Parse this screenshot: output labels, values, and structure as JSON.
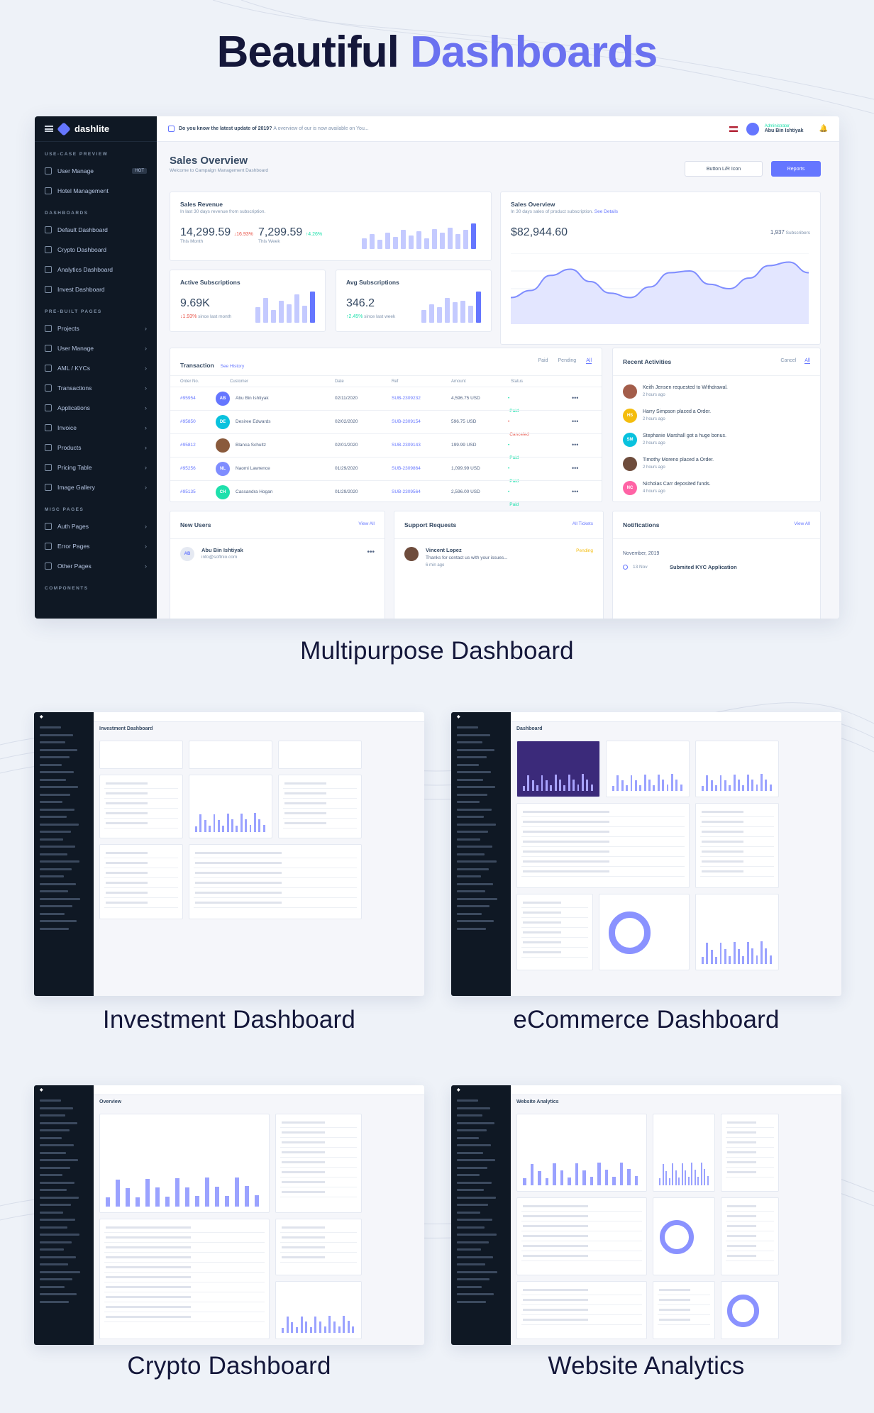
{
  "hero": {
    "title_a": "Beautiful",
    "title_b": "Dashboards"
  },
  "captions": {
    "main": "Multipurpose Dashboard",
    "investment": "Investment Dashboard",
    "ecommerce": "eCommerce Dashboard",
    "crypto": "Crypto Dashboard",
    "analytics": "Website Analytics"
  },
  "main": {
    "logo": "dashlite",
    "sidebar": {
      "use_case": "USE-CASE PREVIEW",
      "use_items": [
        {
          "label": "User Manage",
          "badge": "HOT"
        },
        {
          "label": "Hotel Management"
        }
      ],
      "dashboards": "DASHBOARDS",
      "dash_items": [
        "Default Dashboard",
        "Crypto Dashboard",
        "Analytics Dashboard",
        "Invest Dashboard"
      ],
      "prebuilt": "PRE-BUILT PAGES",
      "pre_items": [
        "Projects",
        "User Manage",
        "AML / KYCs",
        "Transactions",
        "Applications",
        "Invoice",
        "Products",
        "Pricing Table",
        "Image Gallery"
      ],
      "misc": "MISC PAGES",
      "misc_items": [
        "Auth Pages",
        "Error Pages",
        "Other Pages"
      ],
      "components": "COMPONENTS"
    },
    "topbar": {
      "notice_hl": "Do you know the latest update of 2019?",
      "notice_rest": "A overview of our is now available on You...",
      "user_role": "Administrator",
      "user_name": "Abu Bin Ishtiyak"
    },
    "page": {
      "title": "Sales Overview",
      "subtitle": "Welcome to Campaign Management Dashboard",
      "btn_outline": "Button L/R Icon",
      "btn_primary": "Reports"
    },
    "sales_revenue": {
      "title": "Sales Revenue",
      "sub": "In last 30 days revenue from subscription.",
      "v1": "14,299.59",
      "d1": "16.93%",
      "l1": "This Month",
      "v2": "7,299.59",
      "d2": "4.26%",
      "l2": "This Week",
      "bars": [
        0.4,
        0.55,
        0.35,
        0.6,
        0.45,
        0.7,
        0.5,
        0.65,
        0.4,
        0.75,
        0.6,
        0.8,
        0.55,
        0.7,
        0.95
      ]
    },
    "sales_overview": {
      "title": "Sales Overview",
      "sub": "In 30 days sales of product subscription.",
      "sub_link": "See Details",
      "value": "$82,944.60",
      "count": "1,937",
      "count_label": "Subscribers",
      "line": [
        30,
        38,
        55,
        62,
        48,
        35,
        30,
        42,
        58,
        60,
        45,
        40,
        52,
        66,
        70,
        58
      ]
    },
    "active_sub": {
      "title": "Active Subscriptions",
      "value": "9.69K",
      "delta": "1.93%",
      "note": "since last month",
      "bars": [
        0.5,
        0.8,
        0.4,
        0.7,
        0.6,
        0.9,
        0.55,
        1.0
      ]
    },
    "avg_sub": {
      "title": "Avg Subscriptions",
      "value": "346.2",
      "delta": "2.45%",
      "note": "since last week",
      "bars": [
        0.4,
        0.6,
        0.5,
        0.8,
        0.65,
        0.7,
        0.55,
        1.0
      ]
    },
    "transaction": {
      "title": "Transaction",
      "link": "See History",
      "tabs": [
        "Paid",
        "Pending",
        "All"
      ],
      "cols": [
        "Order No.",
        "Customer",
        "Date",
        "Ref",
        "Amount",
        "Status"
      ],
      "rows": [
        {
          "no": "#95954",
          "initials": "AB",
          "color": "#6576ff",
          "name": "Abu Bin Ishtiyak",
          "date": "02/11/2020",
          "ref": "SUB-2309232",
          "amount": "4,596.75 USD",
          "status": "Paid"
        },
        {
          "no": "#95850",
          "initials": "DE",
          "color": "#09c2de",
          "name": "Desiree Edwards",
          "date": "02/02/2020",
          "ref": "SUB-2309154",
          "amount": "596.75 USD",
          "status": "Canceled"
        },
        {
          "no": "#95812",
          "initials": "",
          "color": "#8a5a3c",
          "name": "Blanca Schultz",
          "date": "02/01/2020",
          "ref": "SUB-2309143",
          "amount": "199.99 USD",
          "status": "Paid"
        },
        {
          "no": "#95256",
          "initials": "NL",
          "color": "#7f8dff",
          "name": "Naomi Lawrence",
          "date": "01/29/2020",
          "ref": "SUB-2309864",
          "amount": "1,099.99 USD",
          "status": "Paid"
        },
        {
          "no": "#95135",
          "initials": "CH",
          "color": "#1ee0ac",
          "name": "Cassandra Hogan",
          "date": "01/29/2020",
          "ref": "SUB-2309564",
          "amount": "2,596.00 USD",
          "status": "Paid"
        }
      ]
    },
    "activities": {
      "title": "Recent Activities",
      "tabs": [
        "Cancel",
        "All"
      ],
      "items": [
        {
          "initials": "",
          "color": "#a35d4a",
          "text": "Keith Jensen requested to Withdrawal.",
          "time": "2 hours ago"
        },
        {
          "initials": "HS",
          "color": "#f4bd0e",
          "text": "Harry Simpson placed a Order.",
          "time": "2 hours ago"
        },
        {
          "initials": "SM",
          "color": "#09c2de",
          "text": "Stephanie Marshall got a huge bonus.",
          "time": "2 hours ago"
        },
        {
          "initials": "",
          "color": "#6e4c3c",
          "text": "Timothy Moreno placed a Order.",
          "time": "2 hours ago"
        },
        {
          "initials": "NC",
          "color": "#ff63a5",
          "text": "Nicholas Carr deposited funds.",
          "time": "4 hours ago"
        }
      ]
    },
    "new_users": {
      "title": "New Users",
      "link": "View All",
      "name": "Abu Bin Ishtiyak",
      "email": "info@softnio.com",
      "initials": "AB"
    },
    "support": {
      "title": "Support Requests",
      "link": "All Tickets",
      "name": "Vincent Lopez",
      "msg": "Thanks for contact us with your issues...",
      "time": "6 min ago",
      "status": "Pending"
    },
    "notifications": {
      "title": "Notifications",
      "link": "View All",
      "month": "November, 2019",
      "date": "13 Nov",
      "event": "Submited KYC Application"
    }
  },
  "thumbs": {
    "investment": {
      "title": "Investment Dashboard"
    },
    "ecommerce": {
      "title": "Dashboard"
    },
    "crypto": {
      "title": "Overview"
    },
    "analytics": {
      "title": "Website Analytics"
    }
  },
  "colors": {
    "accent": "#6576ff",
    "dark": "#0f1824",
    "heading": "#14173a"
  }
}
